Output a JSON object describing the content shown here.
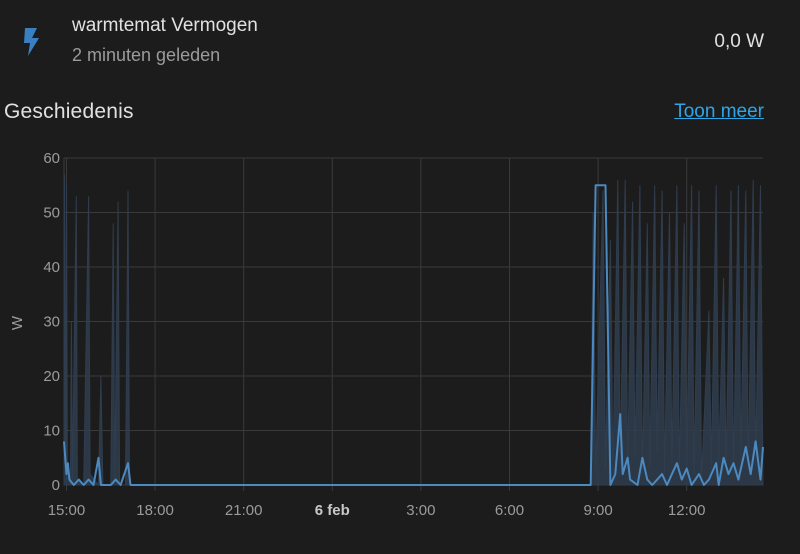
{
  "entity": {
    "name": "warmtemat Vermogen",
    "last_changed": "2 minuten geleden",
    "state": "0,0 W",
    "icon": "flash-icon"
  },
  "history": {
    "title": "Geschiedenis",
    "show_more_label": "Toon meer"
  },
  "colors": {
    "background": "#1c1c1c",
    "series_line": "#4b89c1",
    "series_fill": "#2f3d4e",
    "grid": "#3a3a3a",
    "icon": "#3a7fc1",
    "link": "#2ea6e8"
  },
  "chart_data": {
    "type": "line",
    "title": "",
    "xlabel": "",
    "ylabel": "W",
    "ylim": [
      0,
      60
    ],
    "xlim": [
      "2024-02-05T14:55",
      "2024-02-06T14:35"
    ],
    "yticks": [
      0,
      10,
      20,
      30,
      40,
      50,
      60
    ],
    "xticks": [
      {
        "t": "2024-02-05T15:00",
        "label": "15:00",
        "bold": false
      },
      {
        "t": "2024-02-05T18:00",
        "label": "18:00",
        "bold": false
      },
      {
        "t": "2024-02-05T21:00",
        "label": "21:00",
        "bold": false
      },
      {
        "t": "2024-02-06T00:00",
        "label": "6 feb",
        "bold": true
      },
      {
        "t": "2024-02-06T03:00",
        "label": "3:00",
        "bold": false
      },
      {
        "t": "2024-02-06T06:00",
        "label": "6:00",
        "bold": false
      },
      {
        "t": "2024-02-06T09:00",
        "label": "9:00",
        "bold": false
      },
      {
        "t": "2024-02-06T12:00",
        "label": "12:00",
        "bold": false
      }
    ],
    "grid": true,
    "legend": "none",
    "series": [
      {
        "kind": "max_band",
        "points": [
          [
            "2024-02-05T14:55",
            0
          ],
          [
            "2024-02-05T14:56",
            57
          ],
          [
            "2024-02-05T14:58",
            6
          ],
          [
            "2024-02-05T15:00",
            55
          ],
          [
            "2024-02-05T15:02",
            2
          ],
          [
            "2024-02-05T15:08",
            0
          ],
          [
            "2024-02-05T15:10",
            30
          ],
          [
            "2024-02-05T15:12",
            1
          ],
          [
            "2024-02-05T15:20",
            53
          ],
          [
            "2024-02-05T15:22",
            1
          ],
          [
            "2024-02-05T15:35",
            0
          ],
          [
            "2024-02-05T15:45",
            53
          ],
          [
            "2024-02-05T15:48",
            2
          ],
          [
            "2024-02-05T16:05",
            0
          ],
          [
            "2024-02-05T16:10",
            20
          ],
          [
            "2024-02-05T16:14",
            0
          ],
          [
            "2024-02-05T16:30",
            0
          ],
          [
            "2024-02-05T16:35",
            48
          ],
          [
            "2024-02-05T16:38",
            1
          ],
          [
            "2024-02-05T16:45",
            52
          ],
          [
            "2024-02-05T16:48",
            0
          ],
          [
            "2024-02-05T17:00",
            0
          ],
          [
            "2024-02-05T17:05",
            54
          ],
          [
            "2024-02-05T17:08",
            0
          ],
          [
            "2024-02-05T17:15",
            0
          ],
          [
            "2024-02-06T08:45",
            0
          ],
          [
            "2024-02-06T08:50",
            50
          ],
          [
            "2024-02-06T08:55",
            2
          ],
          [
            "2024-02-06T09:10",
            54
          ],
          [
            "2024-02-06T09:15",
            3
          ],
          [
            "2024-02-06T09:25",
            45
          ],
          [
            "2024-02-06T09:30",
            2
          ],
          [
            "2024-02-06T09:40",
            56
          ],
          [
            "2024-02-06T09:45",
            4
          ],
          [
            "2024-02-06T09:55",
            56
          ],
          [
            "2024-02-06T10:00",
            3
          ],
          [
            "2024-02-06T10:10",
            52
          ],
          [
            "2024-02-06T10:15",
            5
          ],
          [
            "2024-02-06T10:25",
            55
          ],
          [
            "2024-02-06T10:30",
            2
          ],
          [
            "2024-02-06T10:40",
            48
          ],
          [
            "2024-02-06T10:45",
            3
          ],
          [
            "2024-02-06T10:55",
            55
          ],
          [
            "2024-02-06T11:00",
            6
          ],
          [
            "2024-02-06T11:10",
            54
          ],
          [
            "2024-02-06T11:15",
            2
          ],
          [
            "2024-02-06T11:25",
            50
          ],
          [
            "2024-02-06T11:30",
            4
          ],
          [
            "2024-02-06T11:40",
            55
          ],
          [
            "2024-02-06T11:45",
            2
          ],
          [
            "2024-02-06T11:55",
            48
          ],
          [
            "2024-02-06T12:00",
            3
          ],
          [
            "2024-02-06T12:10",
            55
          ],
          [
            "2024-02-06T12:15",
            2
          ],
          [
            "2024-02-06T12:25",
            54
          ],
          [
            "2024-02-06T12:30",
            1
          ],
          [
            "2024-02-06T12:45",
            32
          ],
          [
            "2024-02-06T12:50",
            3
          ],
          [
            "2024-02-06T13:00",
            55
          ],
          [
            "2024-02-06T13:05",
            4
          ],
          [
            "2024-02-06T13:15",
            38
          ],
          [
            "2024-02-06T13:20",
            3
          ],
          [
            "2024-02-06T13:30",
            54
          ],
          [
            "2024-02-06T13:35",
            2
          ],
          [
            "2024-02-06T13:45",
            55
          ],
          [
            "2024-02-06T13:50",
            5
          ],
          [
            "2024-02-06T14:00",
            54
          ],
          [
            "2024-02-06T14:05",
            3
          ],
          [
            "2024-02-06T14:15",
            56
          ],
          [
            "2024-02-06T14:20",
            4
          ],
          [
            "2024-02-06T14:30",
            55
          ],
          [
            "2024-02-06T14:35",
            0
          ]
        ]
      },
      {
        "kind": "mean_line",
        "points": [
          [
            "2024-02-05T14:55",
            8
          ],
          [
            "2024-02-05T15:00",
            2
          ],
          [
            "2024-02-05T15:03",
            4
          ],
          [
            "2024-02-05T15:06",
            1
          ],
          [
            "2024-02-05T15:15",
            0
          ],
          [
            "2024-02-05T15:25",
            1
          ],
          [
            "2024-02-05T15:35",
            0
          ],
          [
            "2024-02-05T15:45",
            1
          ],
          [
            "2024-02-05T15:55",
            0
          ],
          [
            "2024-02-05T16:05",
            5
          ],
          [
            "2024-02-05T16:10",
            0
          ],
          [
            "2024-02-05T16:30",
            0
          ],
          [
            "2024-02-05T16:40",
            1
          ],
          [
            "2024-02-05T16:50",
            0
          ],
          [
            "2024-02-05T17:05",
            4
          ],
          [
            "2024-02-05T17:10",
            0
          ],
          [
            "2024-02-06T08:45",
            0
          ],
          [
            "2024-02-06T08:55",
            55
          ],
          [
            "2024-02-06T09:15",
            55
          ],
          [
            "2024-02-06T09:25",
            0
          ],
          [
            "2024-02-06T09:35",
            2
          ],
          [
            "2024-02-06T09:45",
            13
          ],
          [
            "2024-02-06T09:50",
            2
          ],
          [
            "2024-02-06T10:00",
            5
          ],
          [
            "2024-02-06T10:05",
            1
          ],
          [
            "2024-02-06T10:20",
            0
          ],
          [
            "2024-02-06T10:30",
            5
          ],
          [
            "2024-02-06T10:40",
            1
          ],
          [
            "2024-02-06T10:50",
            0
          ],
          [
            "2024-02-06T11:00",
            1
          ],
          [
            "2024-02-06T11:10",
            2
          ],
          [
            "2024-02-06T11:20",
            0
          ],
          [
            "2024-02-06T11:30",
            2
          ],
          [
            "2024-02-06T11:40",
            4
          ],
          [
            "2024-02-06T11:50",
            1
          ],
          [
            "2024-02-06T12:00",
            3
          ],
          [
            "2024-02-06T12:10",
            0
          ],
          [
            "2024-02-06T12:25",
            2
          ],
          [
            "2024-02-06T12:35",
            0
          ],
          [
            "2024-02-06T12:45",
            1
          ],
          [
            "2024-02-06T13:00",
            4
          ],
          [
            "2024-02-06T13:05",
            0
          ],
          [
            "2024-02-06T13:15",
            5
          ],
          [
            "2024-02-06T13:25",
            2
          ],
          [
            "2024-02-06T13:35",
            4
          ],
          [
            "2024-02-06T13:45",
            1
          ],
          [
            "2024-02-06T14:00",
            7
          ],
          [
            "2024-02-06T14:10",
            2
          ],
          [
            "2024-02-06T14:20",
            8
          ],
          [
            "2024-02-06T14:30",
            1
          ],
          [
            "2024-02-06T14:35",
            7
          ]
        ]
      }
    ]
  }
}
